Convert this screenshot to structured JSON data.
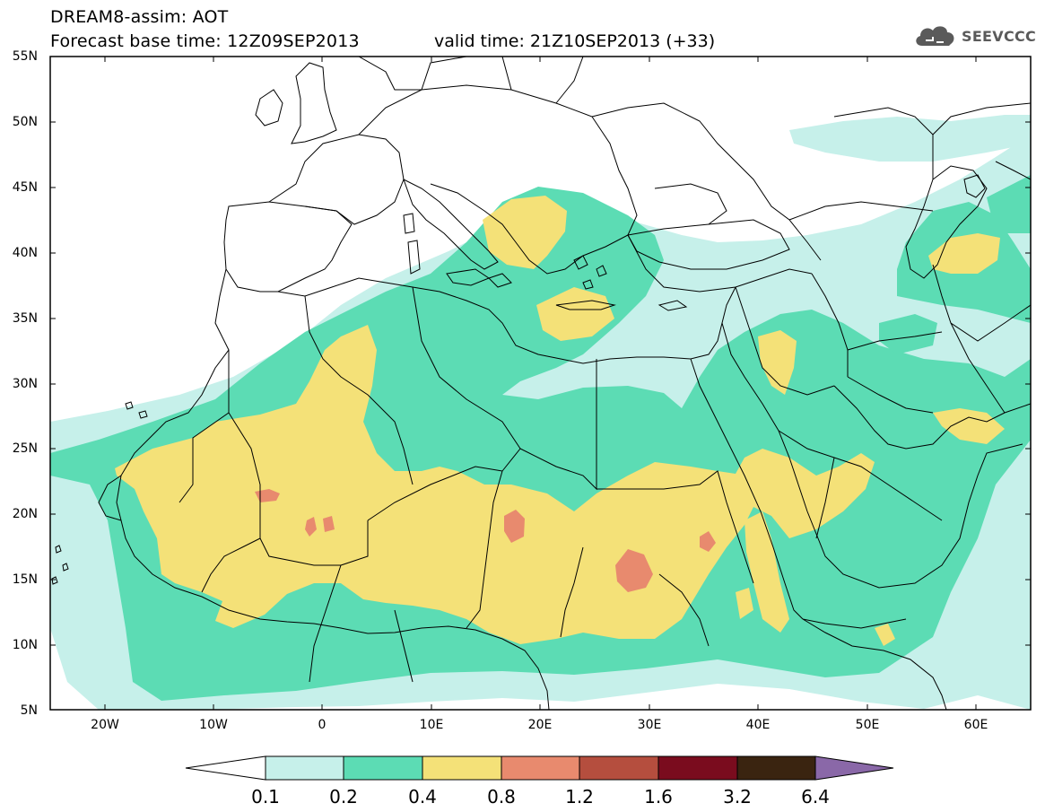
{
  "header": {
    "title": "DREAM8-assim: AOT",
    "base_time": "Forecast base time: 12Z09SEP2013",
    "valid_time": "valid time: 21Z10SEP2013 (+33)",
    "logo_text": "SEEVCCC"
  },
  "map": {
    "lon_range": [
      -25,
      65
    ],
    "lat_range": [
      5,
      55
    ],
    "y_ticks": [
      "55N",
      "50N",
      "45N",
      "40N",
      "35N",
      "30N",
      "25N",
      "20N",
      "15N",
      "10N",
      "5N"
    ],
    "x_ticks": [
      "20W",
      "10W",
      "0",
      "10E",
      "20E",
      "30E",
      "40E",
      "50E",
      "60E"
    ]
  },
  "colorbar": {
    "labels": [
      "0.1",
      "0.2",
      "0.4",
      "0.8",
      "1.2",
      "1.6",
      "3.2",
      "6.4"
    ],
    "colors": [
      "#c6f0ea",
      "#5cdcb4",
      "#f4e178",
      "#e88a6e",
      "#b54e3e",
      "#7a0c1e",
      "#3a2410",
      "#8a68a8"
    ]
  }
}
